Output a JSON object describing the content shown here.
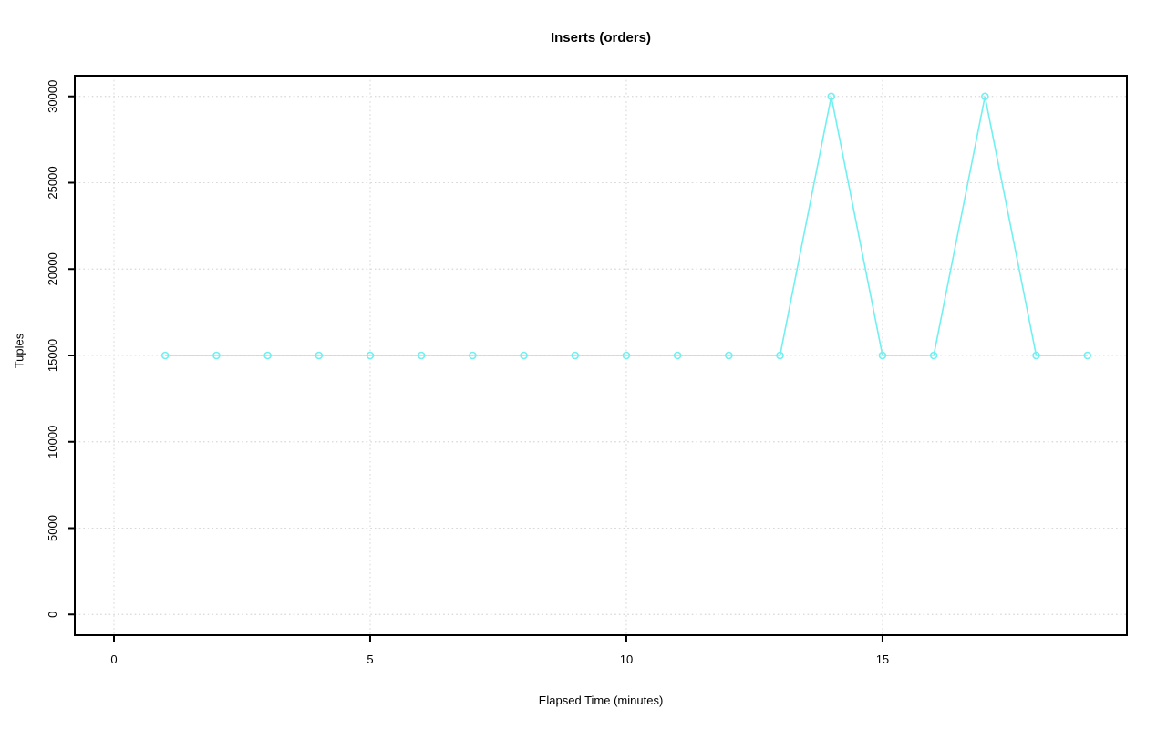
{
  "chart_data": {
    "type": "line",
    "title": "Inserts (orders)",
    "xlabel": "Elapsed Time (minutes)",
    "ylabel": "Tuples",
    "x": [
      1,
      2,
      3,
      4,
      5,
      6,
      7,
      8,
      9,
      10,
      11,
      12,
      13,
      14,
      15,
      16,
      17,
      18,
      19
    ],
    "y": [
      15000,
      15000,
      15000,
      15000,
      15000,
      15000,
      15000,
      15000,
      15000,
      15000,
      15000,
      15000,
      15000,
      30000,
      15000,
      15000,
      30000,
      15000,
      15000
    ],
    "x_ticks": [
      0,
      5,
      10,
      15
    ],
    "y_ticks": [
      0,
      5000,
      10000,
      15000,
      20000,
      25000,
      30000
    ],
    "xlim": [
      -0.765,
      19.77
    ],
    "ylim": [
      -1200,
      31200
    ],
    "grid": true,
    "grid_style": "dotted",
    "legend": "none",
    "marker": "open-circle",
    "colors": {
      "series": "#70f0f0",
      "grid": "#d8d8d8",
      "axis": "#000000",
      "background": "#ffffff"
    }
  }
}
